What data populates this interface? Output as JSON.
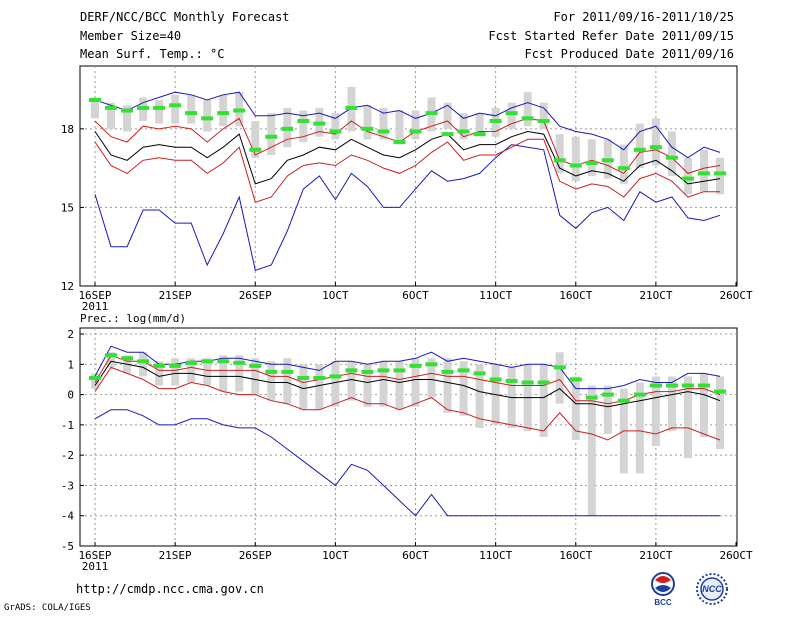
{
  "header": {
    "title": "DERF/NCC/BCC Monthly Forecast",
    "member_size": "Member Size=40",
    "variable": "Mean Surf. Temp.: °C",
    "forecast_period": "For 2011/09/16-2011/10/25",
    "refer_date": "Fcst Started Refer Date 2011/09/15",
    "produced_date": "Fcst Produced Date 2011/09/16"
  },
  "footer": {
    "url": "http://cmdp.ncc.cma.gov.cn",
    "grads_credit": "GrADS: COLA/IGES",
    "logo_bcc_text": "BCC",
    "logo_ncc_text": "NCC"
  },
  "colors": {
    "ensemble_mean": "#000000",
    "spread": "#cc1f1f",
    "envelope": "#1a1ab8",
    "member_box": "#d4d4d4",
    "median_mark": "#33e033",
    "grid": "#999999"
  },
  "chart_data": [
    {
      "type": "line",
      "title": "Mean Surf. Temp.: °C",
      "x": [
        "16SEP",
        "17SEP",
        "18SEP",
        "19SEP",
        "20SEP",
        "21SEP",
        "22SEP",
        "23SEP",
        "24SEP",
        "25SEP",
        "26SEP",
        "27SEP",
        "28SEP",
        "29SEP",
        "30SEP",
        "01OCT",
        "02OCT",
        "03OCT",
        "04OCT",
        "05OCT",
        "06OCT",
        "07OCT",
        "08OCT",
        "09OCT",
        "10OCT",
        "11OCT",
        "12OCT",
        "13OCT",
        "14OCT",
        "15OCT",
        "16OCT",
        "17OCT",
        "18OCT",
        "19OCT",
        "20OCT",
        "21OCT",
        "22OCT",
        "23OCT",
        "24OCT",
        "25OCT"
      ],
      "xtick_labels": [
        "16SEP",
        "21SEP",
        "26SEP",
        "1OCT",
        "6OCT",
        "11OCT",
        "16OCT",
        "21OCT",
        "26OCT"
      ],
      "xtick_year": "2011",
      "yticks": [
        12,
        15,
        18
      ],
      "ylim": [
        12,
        20.4
      ],
      "series": [
        {
          "name": "max",
          "color": "blue",
          "values": [
            19.1,
            18.9,
            18.7,
            19.0,
            19.2,
            19.4,
            19.3,
            19.1,
            19.3,
            19.4,
            18.5,
            18.5,
            18.6,
            18.5,
            18.6,
            18.4,
            18.8,
            18.9,
            18.6,
            18.7,
            18.4,
            18.6,
            18.9,
            18.4,
            18.6,
            18.5,
            18.8,
            19.0,
            18.8,
            18.1,
            17.9,
            17.8,
            17.6,
            17.2,
            17.9,
            18.1,
            17.3,
            16.9,
            17.3,
            17.1
          ]
        },
        {
          "name": "mean+spread",
          "color": "red",
          "values": [
            18.3,
            17.7,
            17.5,
            18.1,
            18.0,
            18.1,
            18.0,
            17.5,
            18.0,
            18.4,
            17.0,
            17.3,
            17.6,
            17.7,
            17.9,
            17.8,
            18.3,
            17.9,
            17.7,
            17.5,
            17.9,
            18.1,
            18.3,
            17.7,
            17.9,
            17.9,
            18.2,
            18.4,
            18.3,
            16.8,
            16.6,
            16.8,
            16.6,
            16.3,
            17.1,
            17.2,
            16.9,
            16.3,
            16.5,
            16.6
          ]
        },
        {
          "name": "ensemble mean",
          "color": "black",
          "values": [
            17.9,
            17.0,
            16.8,
            17.3,
            17.4,
            17.3,
            17.3,
            16.9,
            17.3,
            17.8,
            15.9,
            16.1,
            16.8,
            17.0,
            17.3,
            17.2,
            17.6,
            17.3,
            17.0,
            16.9,
            17.2,
            17.6,
            17.8,
            17.2,
            17.4,
            17.4,
            17.7,
            17.9,
            17.8,
            16.5,
            16.2,
            16.4,
            16.3,
            16.0,
            16.6,
            16.8,
            16.4,
            15.9,
            16.0,
            16.1
          ]
        },
        {
          "name": "mean-spread",
          "color": "red",
          "values": [
            17.5,
            16.6,
            16.3,
            16.8,
            16.9,
            16.8,
            16.8,
            16.3,
            16.7,
            17.3,
            15.2,
            15.4,
            16.2,
            16.6,
            16.7,
            16.6,
            17.0,
            16.8,
            16.5,
            16.3,
            16.6,
            17.1,
            17.5,
            16.8,
            17.0,
            17.0,
            17.3,
            17.6,
            17.6,
            16.0,
            15.7,
            15.9,
            15.8,
            15.4,
            16.1,
            16.3,
            16.0,
            15.4,
            15.6,
            15.6
          ]
        },
        {
          "name": "min",
          "color": "blue",
          "values": [
            15.5,
            13.5,
            13.5,
            14.9,
            14.9,
            14.4,
            14.4,
            12.8,
            14.0,
            15.4,
            12.6,
            12.8,
            14.1,
            15.7,
            16.2,
            15.3,
            16.3,
            15.8,
            15.0,
            15.0,
            15.7,
            16.4,
            16.0,
            16.1,
            16.3,
            16.9,
            17.4,
            17.3,
            17.2,
            14.7,
            14.2,
            14.8,
            15.0,
            14.5,
            15.6,
            15.2,
            15.4,
            14.6,
            14.5,
            14.7
          ]
        }
      ],
      "boxes_low": [
        18.4,
        18.0,
        17.9,
        18.3,
        18.2,
        18.2,
        18.2,
        17.9,
        18.1,
        18.1,
        16.9,
        17.0,
        17.3,
        17.5,
        17.7,
        17.6,
        17.9,
        17.6,
        17.6,
        17.4,
        17.6,
        17.9,
        18.0,
        17.6,
        17.8,
        17.7,
        18.0,
        18.1,
        18.0,
        16.3,
        16.0,
        16.2,
        16.1,
        15.9,
        16.5,
        16.6,
        16.2,
        15.5,
        15.6,
        15.5
      ],
      "boxes_high": [
        19.2,
        19.0,
        18.9,
        19.2,
        19.1,
        19.3,
        19.3,
        19.1,
        19.3,
        19.4,
        18.3,
        18.6,
        18.8,
        18.7,
        18.8,
        18.6,
        19.6,
        18.9,
        18.8,
        18.7,
        18.7,
        19.2,
        19.0,
        18.6,
        18.6,
        18.8,
        19.0,
        19.4,
        19.0,
        17.8,
        17.7,
        17.6,
        17.6,
        17.4,
        18.2,
        18.4,
        17.9,
        16.9,
        17.2,
        16.9
      ],
      "medians": [
        19.1,
        18.8,
        18.7,
        18.8,
        18.8,
        18.9,
        18.6,
        18.4,
        18.6,
        18.7,
        17.2,
        17.7,
        18.0,
        18.3,
        18.2,
        17.9,
        18.8,
        18.0,
        17.9,
        17.5,
        17.9,
        18.6,
        17.8,
        17.9,
        17.8,
        18.3,
        18.6,
        18.4,
        18.3,
        16.8,
        16.6,
        16.7,
        16.8,
        16.5,
        17.2,
        17.3,
        16.9,
        16.1,
        16.3,
        16.3
      ]
    },
    {
      "type": "line",
      "title": "Prec.: log(mm/d)",
      "x": [
        "16SEP",
        "17SEP",
        "18SEP",
        "19SEP",
        "20SEP",
        "21SEP",
        "22SEP",
        "23SEP",
        "24SEP",
        "25SEP",
        "26SEP",
        "27SEP",
        "28SEP",
        "29SEP",
        "30SEP",
        "01OCT",
        "02OCT",
        "03OCT",
        "04OCT",
        "05OCT",
        "06OCT",
        "07OCT",
        "08OCT",
        "09OCT",
        "10OCT",
        "11OCT",
        "12OCT",
        "13OCT",
        "14OCT",
        "15OCT",
        "16OCT",
        "17OCT",
        "18OCT",
        "19OCT",
        "20OCT",
        "21OCT",
        "22OCT",
        "23OCT",
        "24OCT",
        "25OCT"
      ],
      "xtick_labels": [
        "16SEP",
        "21SEP",
        "26SEP",
        "1OCT",
        "6OCT",
        "11OCT",
        "16OCT",
        "21OCT",
        "26OCT"
      ],
      "xtick_year": "2011",
      "yticks": [
        -5,
        -4,
        -3,
        -2,
        -1,
        0,
        1,
        2
      ],
      "ylim": [
        -5,
        2.2
      ],
      "series": [
        {
          "name": "max",
          "color": "blue",
          "values": [
            0.6,
            1.6,
            1.4,
            1.4,
            1.0,
            1.0,
            1.1,
            1.1,
            1.2,
            1.2,
            1.1,
            1.0,
            1.0,
            0.9,
            0.8,
            1.1,
            1.1,
            1.0,
            1.1,
            1.1,
            1.2,
            1.4,
            1.1,
            1.2,
            1.1,
            1.0,
            0.9,
            1.0,
            1.0,
            0.9,
            0.2,
            0.2,
            0.2,
            0.3,
            0.5,
            0.4,
            0.4,
            0.7,
            0.7,
            0.6
          ]
        },
        {
          "name": "mean+spread",
          "color": "red",
          "values": [
            0.4,
            1.3,
            1.1,
            1.1,
            0.8,
            0.8,
            0.9,
            0.8,
            0.8,
            0.8,
            0.8,
            0.6,
            0.6,
            0.4,
            0.5,
            0.6,
            0.7,
            0.6,
            0.6,
            0.5,
            0.6,
            0.7,
            0.6,
            0.6,
            0.5,
            0.4,
            0.3,
            0.3,
            0.3,
            0.5,
            -0.2,
            -0.2,
            -0.3,
            -0.2,
            0.0,
            0.1,
            0.1,
            0.2,
            0.2,
            0.0
          ]
        },
        {
          "name": "ensemble mean",
          "color": "black",
          "values": [
            0.3,
            1.1,
            1.0,
            0.9,
            0.6,
            0.7,
            0.7,
            0.6,
            0.6,
            0.6,
            0.5,
            0.4,
            0.4,
            0.2,
            0.3,
            0.4,
            0.5,
            0.4,
            0.5,
            0.4,
            0.5,
            0.5,
            0.4,
            0.3,
            0.1,
            0.0,
            -0.1,
            -0.1,
            -0.1,
            0.2,
            -0.3,
            -0.3,
            -0.4,
            -0.3,
            -0.2,
            -0.1,
            0.0,
            0.1,
            0.0,
            -0.2
          ]
        },
        {
          "name": "mean-spread",
          "color": "red",
          "values": [
            0.1,
            0.9,
            0.7,
            0.5,
            0.2,
            0.2,
            0.4,
            0.3,
            0.1,
            0.0,
            0.0,
            -0.2,
            -0.3,
            -0.5,
            -0.5,
            -0.3,
            -0.1,
            -0.3,
            -0.3,
            -0.5,
            -0.3,
            -0.1,
            -0.5,
            -0.6,
            -0.8,
            -0.9,
            -1.0,
            -1.1,
            -1.2,
            -0.6,
            -1.2,
            -1.3,
            -1.5,
            -1.2,
            -1.2,
            -1.3,
            -1.1,
            -1.1,
            -1.3,
            -1.5
          ]
        },
        {
          "name": "min",
          "color": "blue",
          "values": [
            -0.8,
            -0.5,
            -0.5,
            -0.7,
            -1.0,
            -1.0,
            -0.8,
            -0.8,
            -1.0,
            -1.1,
            -1.1,
            -1.4,
            -1.8,
            -2.2,
            -2.6,
            -3.0,
            -2.3,
            -2.5,
            -3.0,
            -3.5,
            -4.0,
            -3.3,
            -4.0,
            -4.0,
            -4.0,
            -4.0,
            -4.0,
            -4.0,
            -4.0,
            -4.0,
            -4.0,
            -4.0,
            -4.0,
            -4.0,
            -4.0,
            -4.0,
            -4.0,
            -4.0,
            -4.0,
            -4.0
          ]
        }
      ],
      "boxes_low": [
        0.2,
        0.9,
        0.7,
        0.6,
        0.3,
        0.3,
        0.4,
        0.3,
        0.1,
        0.1,
        0.0,
        -0.2,
        -0.3,
        -0.5,
        -0.5,
        -0.4,
        -0.2,
        -0.4,
        -0.4,
        -0.5,
        -0.4,
        -0.1,
        -0.6,
        -0.7,
        -1.1,
        -1.0,
        -1.1,
        -1.2,
        -1.4,
        -0.3,
        -1.5,
        -4.0,
        -1.3,
        -2.6,
        -2.6,
        -1.7,
        -1.2,
        -2.1,
        -1.4,
        -1.8
      ],
      "boxes_high": [
        0.7,
        1.4,
        1.3,
        1.4,
        1.1,
        1.2,
        1.2,
        1.2,
        1.3,
        1.3,
        1.2,
        1.1,
        1.2,
        1.0,
        1.0,
        1.1,
        1.1,
        1.0,
        1.1,
        1.1,
        1.2,
        1.2,
        1.2,
        1.1,
        1.0,
        1.0,
        0.9,
        1.0,
        1.0,
        1.4,
        0.6,
        0.3,
        0.3,
        0.2,
        0.4,
        0.6,
        0.6,
        0.6,
        0.7,
        0.6
      ],
      "medians": [
        0.55,
        1.3,
        1.2,
        1.1,
        0.95,
        0.95,
        1.05,
        1.1,
        1.1,
        1.05,
        0.95,
        0.75,
        0.75,
        0.55,
        0.55,
        0.6,
        0.8,
        0.75,
        0.8,
        0.8,
        0.95,
        1.0,
        0.75,
        0.8,
        0.7,
        0.5,
        0.45,
        0.4,
        0.4,
        0.9,
        0.5,
        -0.1,
        0.0,
        -0.2,
        0.0,
        0.3,
        0.3,
        0.3,
        0.3,
        0.1
      ]
    }
  ]
}
